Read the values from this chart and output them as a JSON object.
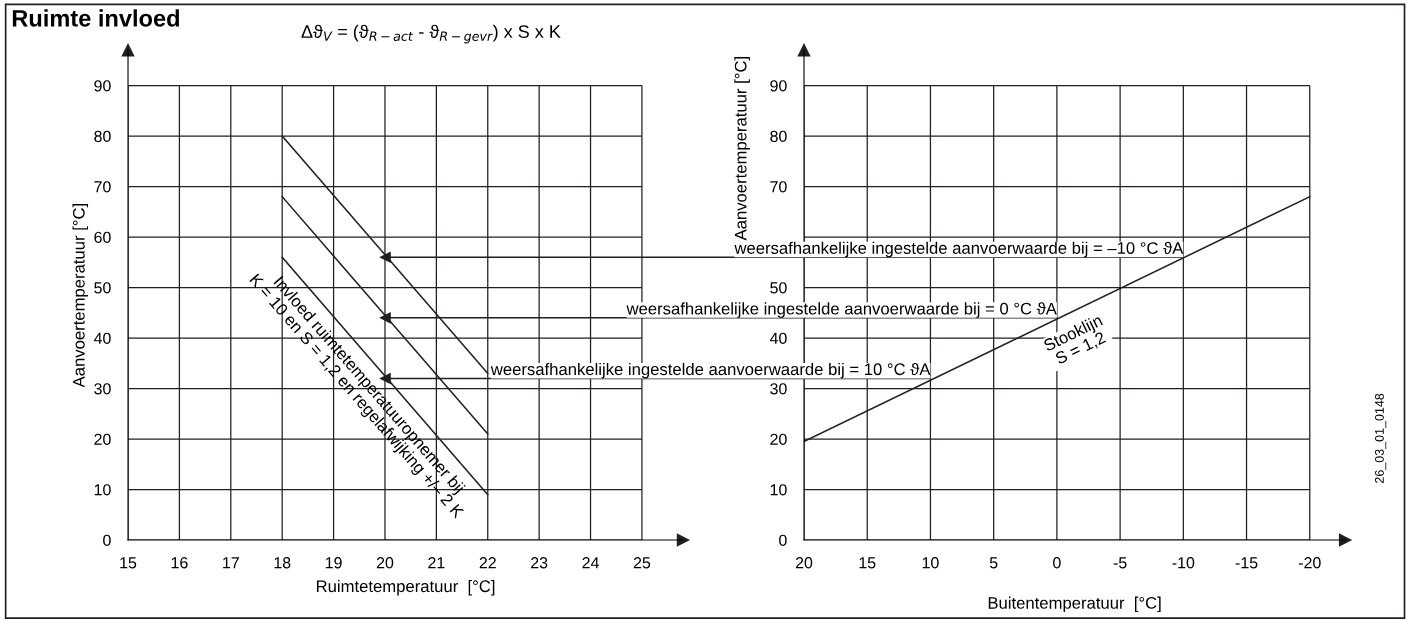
{
  "chart_data": [
    {
      "type": "line",
      "title": "Ruimte invloed",
      "subtitle": "Δϑ$_{V}$ = (ϑ$_{R−act}$ - ϑ$_{R−gevr}$) x S x K",
      "xlabel": "Ruimtetemperatuur  [°C]",
      "ylabel": "Aanvoertemperatuur [°C]",
      "xlim": [
        15,
        25.8
      ],
      "xticks": [
        15,
        16,
        17,
        18,
        19,
        20,
        21,
        22,
        23,
        24,
        25
      ],
      "ylim": [
        0,
        97
      ],
      "yticks": [
        0,
        10,
        20,
        30,
        40,
        50,
        60,
        70,
        80,
        90
      ],
      "grid": true,
      "series": [
        {
          "color": "#231f20",
          "x": [
            18,
            22
          ],
          "values": [
            80,
            33
          ]
        },
        {
          "color": "#231f20",
          "x": [
            18,
            22
          ],
          "values": [
            68,
            21
          ]
        },
        {
          "color": "#231f20",
          "x": [
            18,
            22
          ],
          "values": [
            56,
            9
          ]
        },
        {
          "type": "scatter",
          "marker": "triangle",
          "color": "#231f20",
          "x": [
            20,
            20,
            20
          ],
          "values": [
            56,
            44,
            32
          ]
        }
      ],
      "annotations": [
        "Invloed ruimtetemperatuuropnemer bij\nK = 10 en S = 1,2 en regelafwijking +/– 2 K"
      ]
    },
    {
      "type": "line",
      "xlabel": "Buitentemperatuur  [°C]",
      "ylabel": "Aanvoertemperatuur [°C]",
      "xlim": [
        20,
        -22.8
      ],
      "xticks": [
        20,
        15,
        10,
        5,
        0,
        -5,
        -10,
        -15,
        -20
      ],
      "ylim": [
        0,
        97
      ],
      "yticks": [
        0,
        10,
        20,
        30,
        40,
        50,
        {
          "value": 60,
          "label": null
        },
        70,
        80,
        90
      ],
      "grid": true,
      "series": [
        {
          "color": "#231f20",
          "x": [
            20,
            -20
          ],
          "values": [
            19.5,
            68
          ]
        }
      ],
      "annotations": [
        {
          "text": "weersafhankelijke ingestelde aanvoerwaarde bij = –10 °C ϑA",
          "x": -10,
          "y": 56
        },
        {
          "text": "weersafhankelijke ingestelde aanvoerwaarde bij = 0 °C ϑA",
          "x": 0,
          "y": 44
        },
        {
          "text": "weersafhankelijke ingestelde aanvoerwaarde bij = 10 °C ϑA",
          "x": 10,
          "y": 32
        },
        "Stooklijn\nS = 1,2",
        "26_03_01_0148"
      ]
    }
  ]
}
